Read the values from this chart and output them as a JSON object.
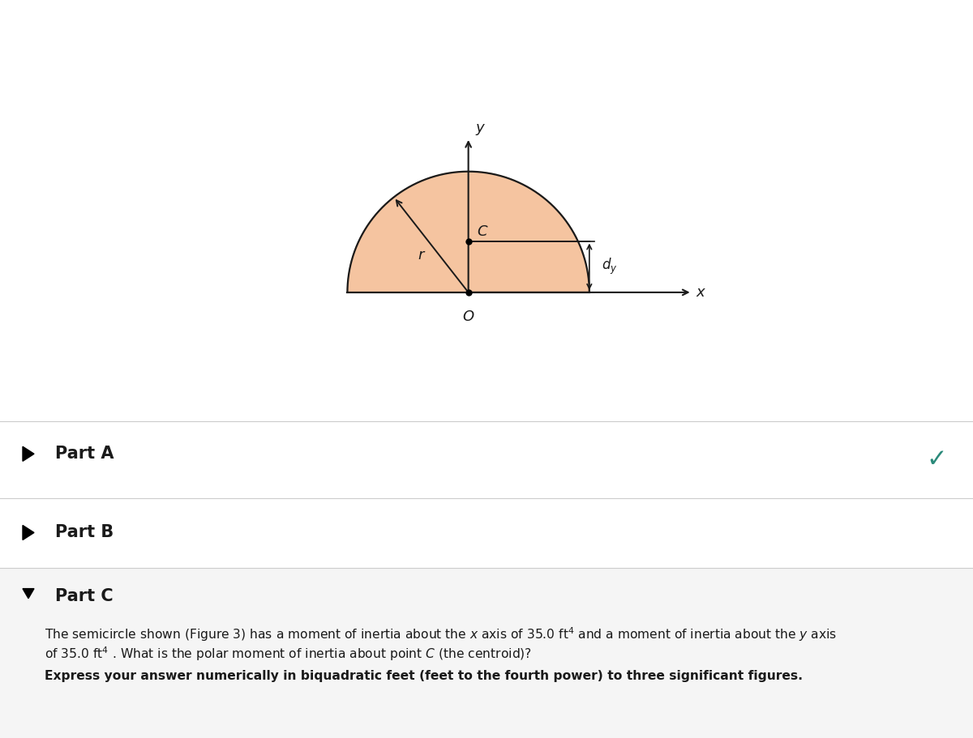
{
  "bg_color": "#ffffff",
  "semicircle_color": "#f5c4a0",
  "semicircle_edge_color": "#1a1a1a",
  "axis_color": "#1a1a1a",
  "text_color": "#1a1a1a",
  "fig_width": 12.0,
  "fig_height": 9.11,
  "part_A_label": "Part A",
  "part_B_label": "Part B",
  "part_C_label": "Part C",
  "part_C_bg": "#f5f5f5",
  "checkmark_color": "#2a8a7a",
  "divider_color": "#cccccc",
  "bold_text": "Express your answer numerically in biquadratic feet (feet to the fourth power) to three significant figures.",
  "line1a": "The semicircle shown (Figure 3) has a moment of inertia about the ",
  "line1b": "x",
  "line1c": " axis of 35.0 ft",
  "line1d": "4",
  "line1e": " and a moment of inertia about the ",
  "line1f": "y",
  "line1g": " axis",
  "line2a": "of 35.0 ft",
  "line2b": "4",
  "line2c": " . What is the polar moment of inertia about point ",
  "line2d": "C",
  "line2e": " (the centroid)?"
}
